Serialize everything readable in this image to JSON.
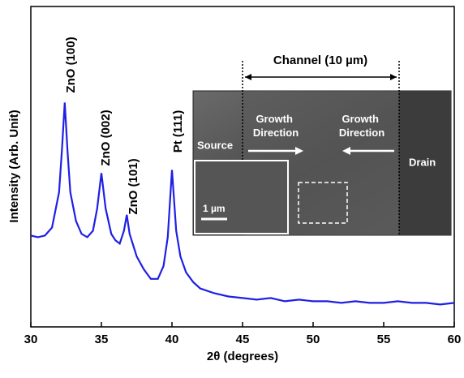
{
  "chart_data": {
    "type": "line",
    "xlabel": "2θ (degrees)",
    "ylabel": "Intensity (Arb. Unit)",
    "x": [
      30,
      30.5,
      31,
      31.5,
      32,
      32.2,
      32.4,
      32.6,
      32.8,
      33.2,
      33.6,
      34,
      34.4,
      34.7,
      35,
      35.3,
      35.7,
      36,
      36.3,
      36.6,
      36.8,
      37,
      37.5,
      38,
      38.5,
      39,
      39.4,
      39.7,
      40,
      40.3,
      40.6,
      41,
      41.5,
      42,
      43,
      44,
      45,
      46,
      47,
      48,
      49,
      50,
      51,
      52,
      53,
      54,
      55,
      56,
      57,
      58,
      59,
      60
    ],
    "series": [
      {
        "color": "#1f1fe6",
        "values": [
          28.5,
          28,
          28.5,
          31,
          42,
          55,
          70,
          55,
          42,
          33,
          29,
          28,
          30,
          37,
          48,
          37,
          29,
          27,
          26,
          30,
          35,
          29,
          22,
          18,
          15,
          15,
          19,
          28,
          49,
          30,
          22,
          17,
          14,
          12,
          10.5,
          9.5,
          9,
          8.5,
          9,
          8,
          8.5,
          8,
          8,
          7.5,
          8,
          7.5,
          7.5,
          8,
          7.5,
          7.5,
          7,
          7.5
        ]
      }
    ],
    "xlim": [
      30,
      60
    ],
    "xticks": [
      30,
      35,
      40,
      45,
      50,
      55,
      60
    ],
    "ylim": [
      0,
      100
    ],
    "annotations": [
      "ZnO (100)",
      "ZnO (002)",
      "ZnO (101)",
      "Pt (111)"
    ],
    "inset_labels": [
      "Channel (10 µm)",
      "Growth Direction",
      "Growth Direction",
      "Source",
      "Drain",
      "1 µm"
    ]
  }
}
